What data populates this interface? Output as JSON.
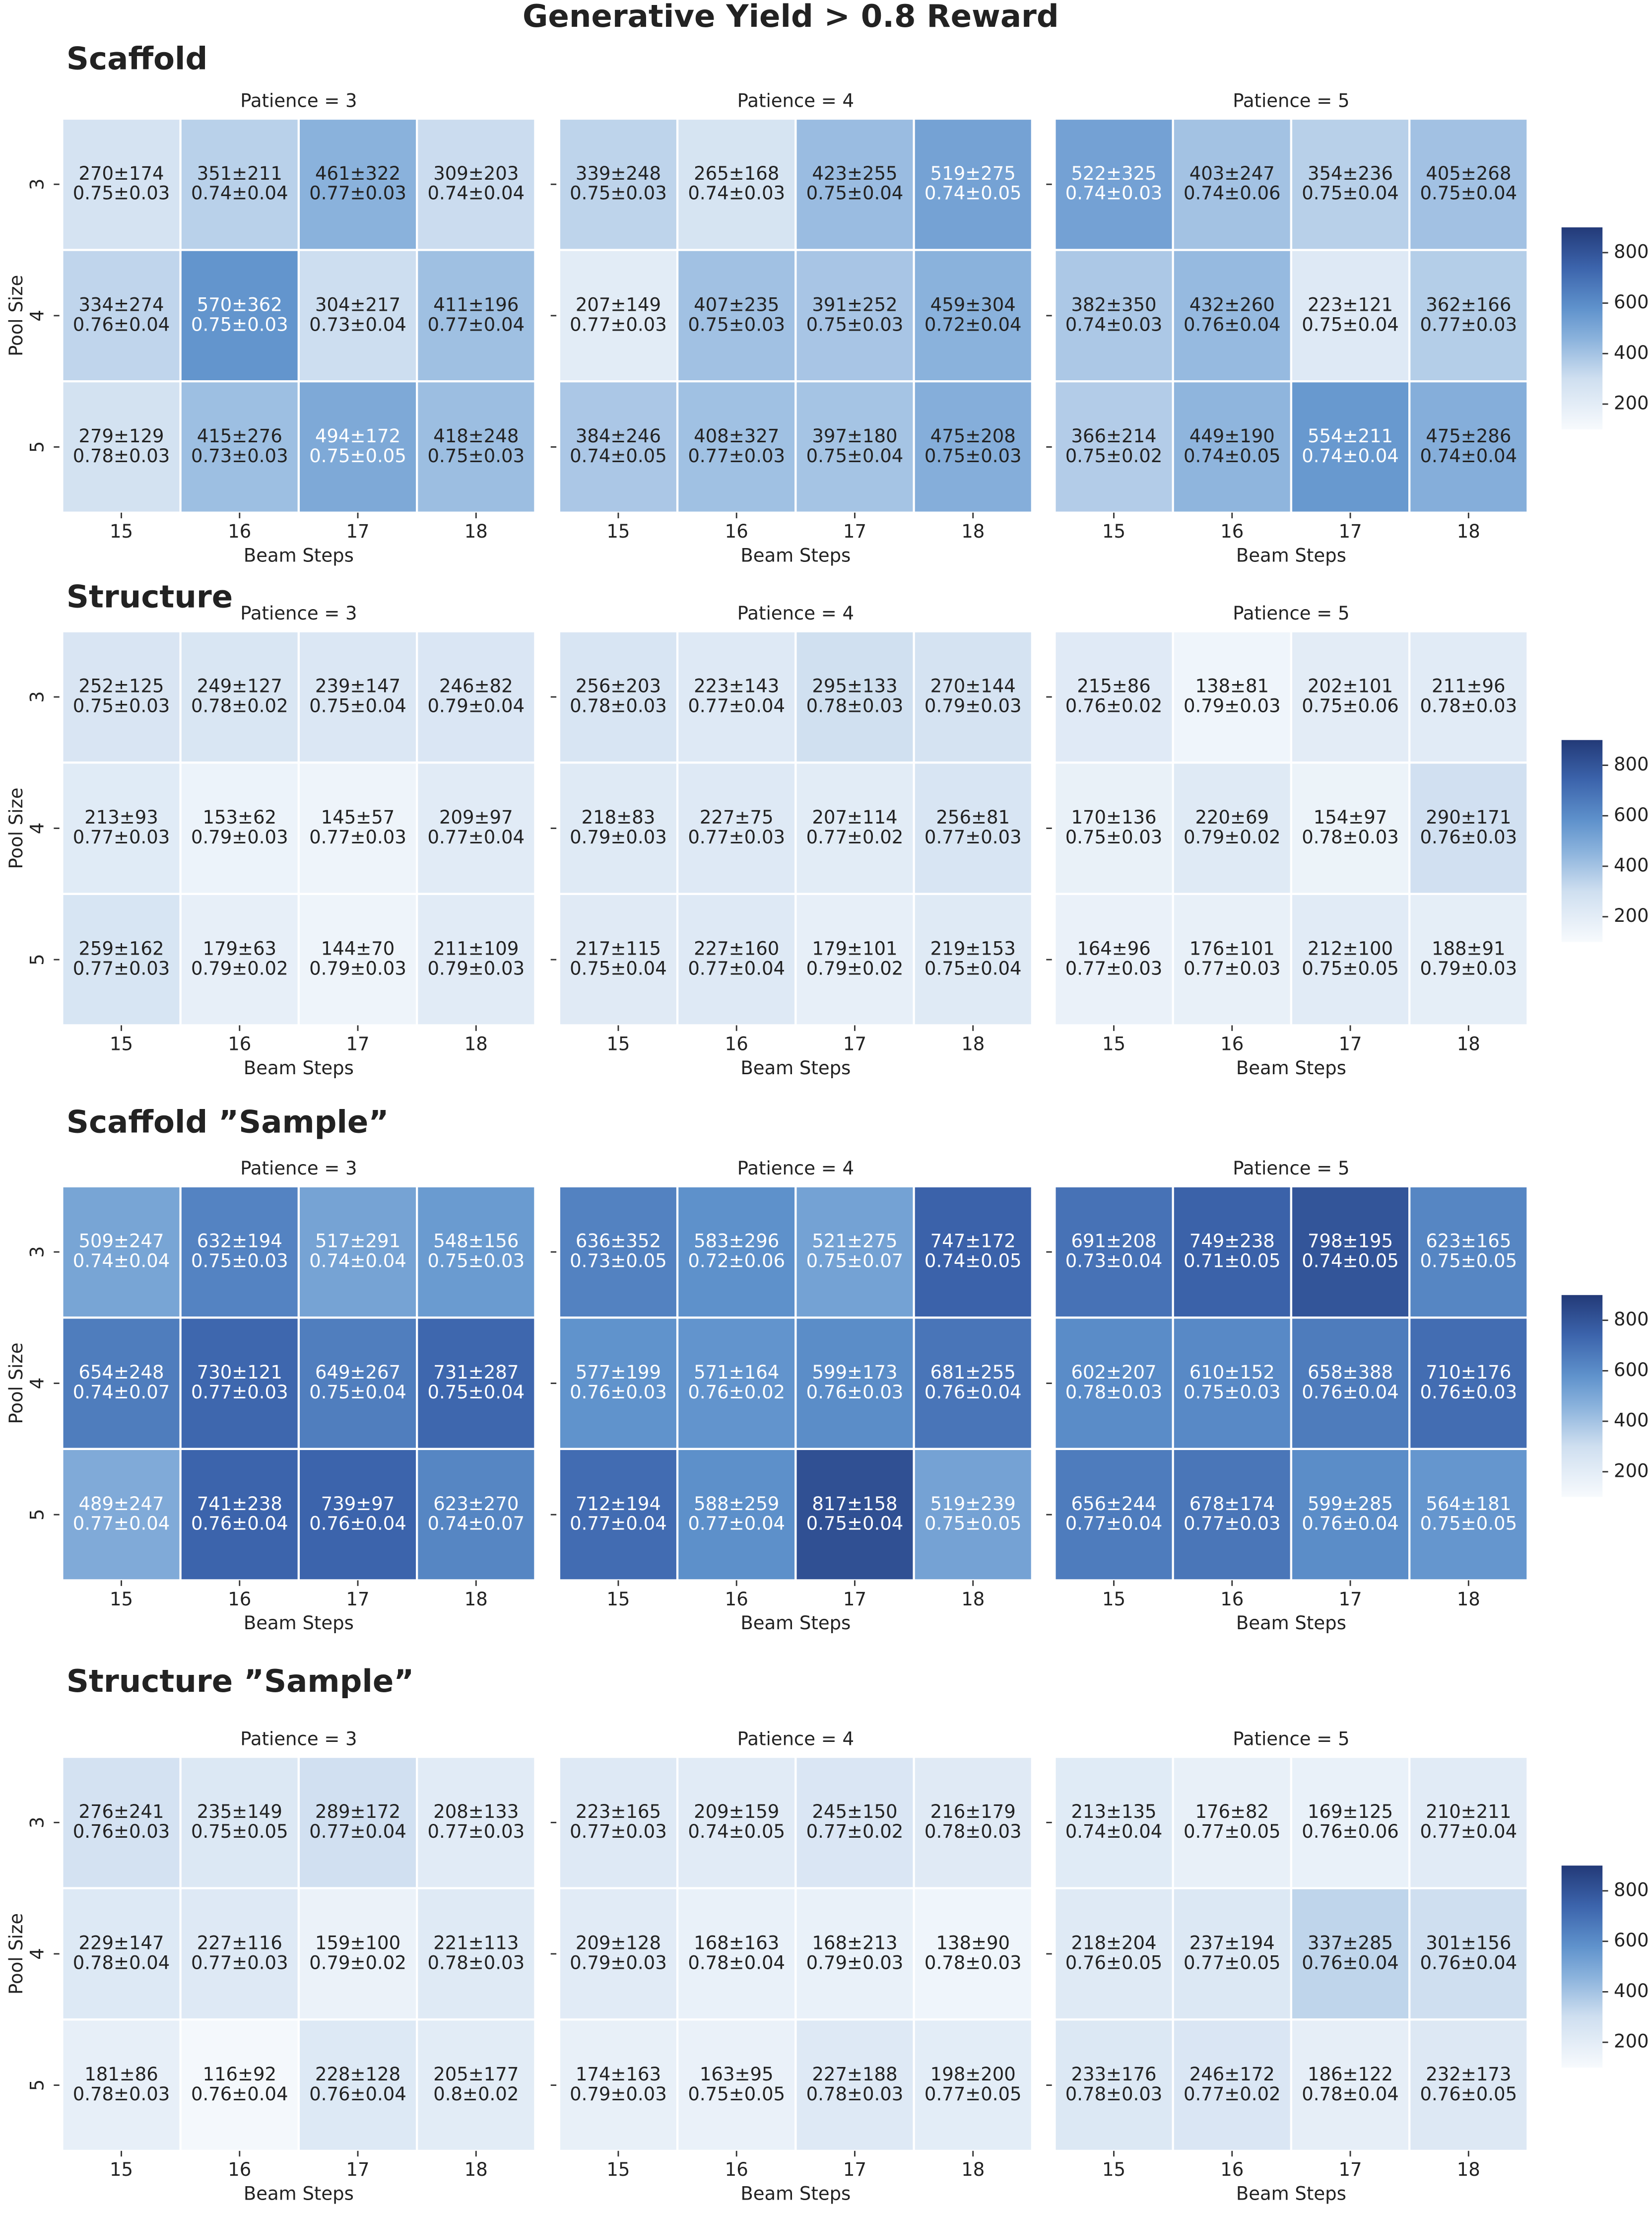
{
  "title": "Generative Yield > 0.8 Reward",
  "colormap": [
    "#f7fafd",
    "#cfdff0",
    "#8ab2dc",
    "#5f92cc",
    "#3c64ac",
    "#233a78"
  ],
  "colormap_stops": [
    0,
    0.25,
    0.45,
    0.6,
    0.8,
    1
  ],
  "chart_data": [
    {
      "type": "heatmap",
      "section": "Scaffold",
      "title": "Patience = 3",
      "x": [
        15,
        16,
        17,
        18
      ],
      "y": [
        3,
        4,
        5
      ],
      "xlabel": "Beam Steps",
      "ylabel": "Pool Size",
      "vlim": [
        100,
        900
      ],
      "values": [
        [
          270,
          351,
          461,
          309
        ],
        [
          334,
          570,
          304,
          411
        ],
        [
          279,
          415,
          494,
          418
        ]
      ],
      "value_labels": [
        [
          "270±174",
          "351±211",
          "461±322",
          "309±203"
        ],
        [
          "334±274",
          "570±362",
          "304±217",
          "411±196"
        ],
        [
          "279±129",
          "415±276",
          "494±172",
          "418±248"
        ]
      ],
      "reward_labels": [
        [
          "0.75±0.03",
          "0.74±0.04",
          "0.77±0.03",
          "0.74±0.04"
        ],
        [
          "0.76±0.04",
          "0.75±0.03",
          "0.73±0.04",
          "0.77±0.04"
        ],
        [
          "0.78±0.03",
          "0.73±0.03",
          "0.75±0.05",
          "0.75±0.03"
        ]
      ]
    },
    {
      "type": "heatmap",
      "title": "Patience = 4",
      "x": [
        15,
        16,
        17,
        18
      ],
      "xlabel": "Beam Steps",
      "vlim": [
        100,
        900
      ],
      "values": [
        [
          339,
          265,
          423,
          519
        ],
        [
          207,
          407,
          391,
          459
        ],
        [
          384,
          408,
          397,
          475
        ]
      ],
      "value_labels": [
        [
          "339±248",
          "265±168",
          "423±255",
          "519±275"
        ],
        [
          "207±149",
          "407±235",
          "391±252",
          "459±304"
        ],
        [
          "384±246",
          "408±327",
          "397±180",
          "475±208"
        ]
      ],
      "reward_labels": [
        [
          "0.75±0.03",
          "0.74±0.03",
          "0.75±0.04",
          "0.74±0.05"
        ],
        [
          "0.77±0.03",
          "0.75±0.03",
          "0.75±0.03",
          "0.72±0.04"
        ],
        [
          "0.74±0.05",
          "0.77±0.03",
          "0.75±0.04",
          "0.75±0.03"
        ]
      ]
    },
    {
      "type": "heatmap",
      "title": "Patience = 5",
      "x": [
        15,
        16,
        17,
        18
      ],
      "xlabel": "Beam Steps",
      "vlim": [
        100,
        900
      ],
      "cbar_ticks": [
        200,
        400,
        600,
        800
      ],
      "values": [
        [
          522,
          403,
          354,
          405
        ],
        [
          382,
          432,
          223,
          362
        ],
        [
          366,
          449,
          554,
          475
        ]
      ],
      "value_labels": [
        [
          "522±325",
          "403±247",
          "354±236",
          "405±268"
        ],
        [
          "382±350",
          "432±260",
          "223±121",
          "362±166"
        ],
        [
          "366±214",
          "449±190",
          "554±211",
          "475±286"
        ]
      ],
      "reward_labels": [
        [
          "0.74±0.03",
          "0.74±0.06",
          "0.75±0.04",
          "0.75±0.04"
        ],
        [
          "0.74±0.03",
          "0.76±0.04",
          "0.75±0.04",
          "0.77±0.03"
        ],
        [
          "0.75±0.02",
          "0.74±0.05",
          "0.74±0.04",
          "0.74±0.04"
        ]
      ]
    },
    {
      "type": "heatmap",
      "section": "Structure",
      "title": "Patience = 3",
      "x": [
        15,
        16,
        17,
        18
      ],
      "y": [
        3,
        4,
        5
      ],
      "xlabel": "Beam Steps",
      "ylabel": "Pool Size",
      "vlim": [
        100,
        900
      ],
      "values": [
        [
          252,
          249,
          239,
          246
        ],
        [
          213,
          153,
          145,
          209
        ],
        [
          259,
          179,
          144,
          211
        ]
      ],
      "value_labels": [
        [
          "252±125",
          "249±127",
          "239±147",
          "246±82"
        ],
        [
          "213±93",
          "153±62",
          "145±57",
          "209±97"
        ],
        [
          "259±162",
          "179±63",
          "144±70",
          "211±109"
        ]
      ],
      "reward_labels": [
        [
          "0.75±0.03",
          "0.78±0.02",
          "0.75±0.04",
          "0.79±0.04"
        ],
        [
          "0.77±0.03",
          "0.79±0.03",
          "0.77±0.03",
          "0.77±0.04"
        ],
        [
          "0.77±0.03",
          "0.79±0.02",
          "0.79±0.03",
          "0.79±0.03"
        ]
      ]
    },
    {
      "type": "heatmap",
      "title": "Patience = 4",
      "x": [
        15,
        16,
        17,
        18
      ],
      "xlabel": "Beam Steps",
      "vlim": [
        100,
        900
      ],
      "values": [
        [
          256,
          223,
          295,
          270
        ],
        [
          218,
          227,
          207,
          256
        ],
        [
          217,
          227,
          179,
          219
        ]
      ],
      "value_labels": [
        [
          "256±203",
          "223±143",
          "295±133",
          "270±144"
        ],
        [
          "218±83",
          "227±75",
          "207±114",
          "256±81"
        ],
        [
          "217±115",
          "227±160",
          "179±101",
          "219±153"
        ]
      ],
      "reward_labels": [
        [
          "0.78±0.03",
          "0.77±0.04",
          "0.78±0.03",
          "0.79±0.03"
        ],
        [
          "0.79±0.03",
          "0.77±0.03",
          "0.77±0.02",
          "0.77±0.03"
        ],
        [
          "0.75±0.04",
          "0.77±0.04",
          "0.79±0.02",
          "0.75±0.04"
        ]
      ]
    },
    {
      "type": "heatmap",
      "title": "Patience = 5",
      "x": [
        15,
        16,
        17,
        18
      ],
      "xlabel": "Beam Steps",
      "vlim": [
        100,
        900
      ],
      "cbar_ticks": [
        200,
        400,
        600,
        800
      ],
      "values": [
        [
          215,
          138,
          202,
          211
        ],
        [
          170,
          220,
          154,
          290
        ],
        [
          164,
          176,
          212,
          188
        ]
      ],
      "value_labels": [
        [
          "215±86",
          "138±81",
          "202±101",
          "211±96"
        ],
        [
          "170±136",
          "220±69",
          "154±97",
          "290±171"
        ],
        [
          "164±96",
          "176±101",
          "212±100",
          "188±91"
        ]
      ],
      "reward_labels": [
        [
          "0.76±0.02",
          "0.79±0.03",
          "0.75±0.06",
          "0.78±0.03"
        ],
        [
          "0.75±0.03",
          "0.79±0.02",
          "0.78±0.03",
          "0.76±0.03"
        ],
        [
          "0.77±0.03",
          "0.77±0.03",
          "0.75±0.05",
          "0.79±0.03"
        ]
      ]
    },
    {
      "type": "heatmap",
      "section": "Scaffold ”Sample”",
      "title": "Patience = 3",
      "x": [
        15,
        16,
        17,
        18
      ],
      "y": [
        3,
        4,
        5
      ],
      "xlabel": "Beam Steps",
      "ylabel": "Pool Size",
      "vlim": [
        100,
        900
      ],
      "values": [
        [
          509,
          632,
          517,
          548
        ],
        [
          654,
          730,
          649,
          731
        ],
        [
          489,
          741,
          739,
          623
        ]
      ],
      "value_labels": [
        [
          "509±247",
          "632±194",
          "517±291",
          "548±156"
        ],
        [
          "654±248",
          "730±121",
          "649±267",
          "731±287"
        ],
        [
          "489±247",
          "741±238",
          "739±97",
          "623±270"
        ]
      ],
      "reward_labels": [
        [
          "0.74±0.04",
          "0.75±0.03",
          "0.74±0.04",
          "0.75±0.03"
        ],
        [
          "0.74±0.07",
          "0.77±0.03",
          "0.75±0.04",
          "0.75±0.04"
        ],
        [
          "0.77±0.04",
          "0.76±0.04",
          "0.76±0.04",
          "0.74±0.07"
        ]
      ]
    },
    {
      "type": "heatmap",
      "title": "Patience = 4",
      "x": [
        15,
        16,
        17,
        18
      ],
      "xlabel": "Beam Steps",
      "vlim": [
        100,
        900
      ],
      "values": [
        [
          636,
          583,
          521,
          747
        ],
        [
          577,
          571,
          599,
          681
        ],
        [
          712,
          588,
          817,
          519
        ]
      ],
      "value_labels": [
        [
          "636±352",
          "583±296",
          "521±275",
          "747±172"
        ],
        [
          "577±199",
          "571±164",
          "599±173",
          "681±255"
        ],
        [
          "712±194",
          "588±259",
          "817±158",
          "519±239"
        ]
      ],
      "reward_labels": [
        [
          "0.73±0.05",
          "0.72±0.06",
          "0.75±0.07",
          "0.74±0.05"
        ],
        [
          "0.76±0.03",
          "0.76±0.02",
          "0.76±0.03",
          "0.76±0.04"
        ],
        [
          "0.77±0.04",
          "0.77±0.04",
          "0.75±0.04",
          "0.75±0.05"
        ]
      ]
    },
    {
      "type": "heatmap",
      "title": "Patience = 5",
      "x": [
        15,
        16,
        17,
        18
      ],
      "xlabel": "Beam Steps",
      "vlim": [
        100,
        900
      ],
      "cbar_ticks": [
        200,
        400,
        600,
        800
      ],
      "values": [
        [
          691,
          749,
          798,
          623
        ],
        [
          602,
          610,
          658,
          710
        ],
        [
          656,
          678,
          599,
          564
        ]
      ],
      "value_labels": [
        [
          "691±208",
          "749±238",
          "798±195",
          "623±165"
        ],
        [
          "602±207",
          "610±152",
          "658±388",
          "710±176"
        ],
        [
          "656±244",
          "678±174",
          "599±285",
          "564±181"
        ]
      ],
      "reward_labels": [
        [
          "0.73±0.04",
          "0.71±0.05",
          "0.74±0.05",
          "0.75±0.05"
        ],
        [
          "0.78±0.03",
          "0.75±0.03",
          "0.76±0.04",
          "0.76±0.03"
        ],
        [
          "0.77±0.04",
          "0.77±0.03",
          "0.76±0.04",
          "0.75±0.05"
        ]
      ]
    },
    {
      "type": "heatmap",
      "section": "Structure ”Sample”",
      "title": "Patience = 3",
      "x": [
        15,
        16,
        17,
        18
      ],
      "y": [
        3,
        4,
        5
      ],
      "xlabel": "Beam Steps",
      "ylabel": "Pool Size",
      "vlim": [
        100,
        900
      ],
      "values": [
        [
          276,
          235,
          289,
          208
        ],
        [
          229,
          227,
          159,
          221
        ],
        [
          181,
          116,
          228,
          205
        ]
      ],
      "value_labels": [
        [
          "276±241",
          "235±149",
          "289±172",
          "208±133"
        ],
        [
          "229±147",
          "227±116",
          "159±100",
          "221±113"
        ],
        [
          "181±86",
          "116±92",
          "228±128",
          "205±177"
        ]
      ],
      "reward_labels": [
        [
          "0.76±0.03",
          "0.75±0.05",
          "0.77±0.04",
          "0.77±0.03"
        ],
        [
          "0.78±0.04",
          "0.77±0.03",
          "0.79±0.02",
          "0.78±0.03"
        ],
        [
          "0.78±0.03",
          "0.76±0.04",
          "0.76±0.04",
          "0.8±0.02"
        ]
      ]
    },
    {
      "type": "heatmap",
      "title": "Patience = 4",
      "x": [
        15,
        16,
        17,
        18
      ],
      "xlabel": "Beam Steps",
      "vlim": [
        100,
        900
      ],
      "values": [
        [
          223,
          209,
          245,
          216
        ],
        [
          209,
          168,
          168,
          138
        ],
        [
          174,
          163,
          227,
          198
        ]
      ],
      "value_labels": [
        [
          "223±165",
          "209±159",
          "245±150",
          "216±179"
        ],
        [
          "209±128",
          "168±163",
          "168±213",
          "138±90"
        ],
        [
          "174±163",
          "163±95",
          "227±188",
          "198±200"
        ]
      ],
      "reward_labels": [
        [
          "0.77±0.03",
          "0.74±0.05",
          "0.77±0.02",
          "0.78±0.03"
        ],
        [
          "0.79±0.03",
          "0.78±0.04",
          "0.79±0.03",
          "0.78±0.03"
        ],
        [
          "0.79±0.03",
          "0.75±0.05",
          "0.78±0.03",
          "0.77±0.05"
        ]
      ]
    },
    {
      "type": "heatmap",
      "title": "Patience = 5",
      "x": [
        15,
        16,
        17,
        18
      ],
      "xlabel": "Beam Steps",
      "vlim": [
        100,
        900
      ],
      "cbar_ticks": [
        200,
        400,
        600,
        800
      ],
      "values": [
        [
          213,
          176,
          169,
          210
        ],
        [
          218,
          237,
          337,
          301
        ],
        [
          233,
          246,
          186,
          232
        ]
      ],
      "value_labels": [
        [
          "213±135",
          "176±82",
          "169±125",
          "210±211"
        ],
        [
          "218±204",
          "237±194",
          "337±285",
          "301±156"
        ],
        [
          "233±176",
          "246±172",
          "186±122",
          "232±173"
        ]
      ],
      "reward_labels": [
        [
          "0.74±0.04",
          "0.77±0.05",
          "0.76±0.06",
          "0.77±0.04"
        ],
        [
          "0.76±0.05",
          "0.77±0.05",
          "0.76±0.04",
          "0.76±0.04"
        ],
        [
          "0.78±0.03",
          "0.77±0.02",
          "0.78±0.04",
          "0.76±0.05"
        ]
      ]
    }
  ]
}
